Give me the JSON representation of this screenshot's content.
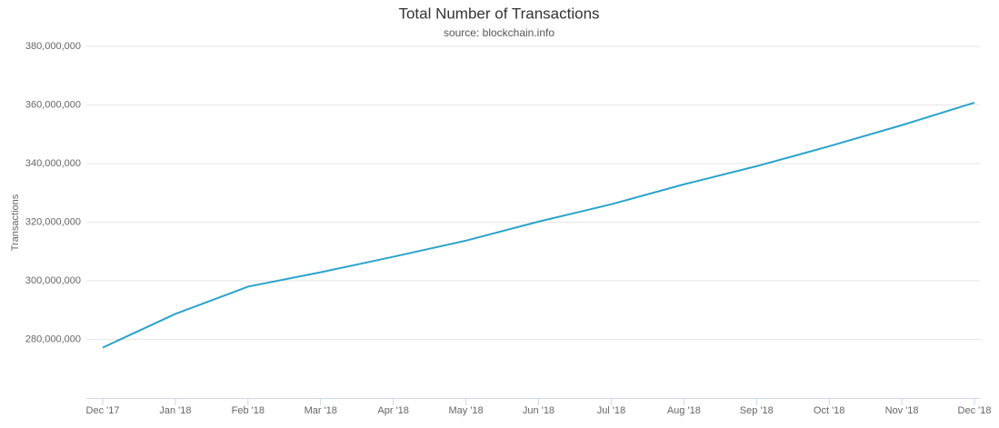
{
  "chart_data": {
    "type": "line",
    "title": "Total Number of Transactions",
    "subtitle": "source: blockchain.info",
    "y_label": "Transactions",
    "categories": [
      "Dec '17",
      "Jan '18",
      "Feb '18",
      "Mar '18",
      "Apr '18",
      "May '18",
      "Jun '18",
      "Jul '18",
      "Aug '18",
      "Sep '18",
      "Oct '18",
      "Nov '18",
      "Dec '18"
    ],
    "series": [
      {
        "name": "Transactions",
        "color": "#2aa3cb",
        "values": [
          277200000,
          288700000,
          298000000,
          302900000,
          308200000,
          313700000,
          320200000,
          326100000,
          332900000,
          339100000,
          345900000,
          353100000,
          360800000
        ]
      }
    ],
    "ylim": [
      260000000,
      380000000
    ],
    "yticks": [
      {
        "value": 280000000,
        "label": "280,000,000"
      },
      {
        "value": 300000000,
        "label": "300,000,000"
      },
      {
        "value": 320000000,
        "label": "320,000,000"
      },
      {
        "value": 340000000,
        "label": "340,000,000"
      },
      {
        "value": 360000000,
        "label": "360,000,000"
      },
      {
        "value": 380000000,
        "label": "380,000,000"
      }
    ],
    "grid": true
  }
}
